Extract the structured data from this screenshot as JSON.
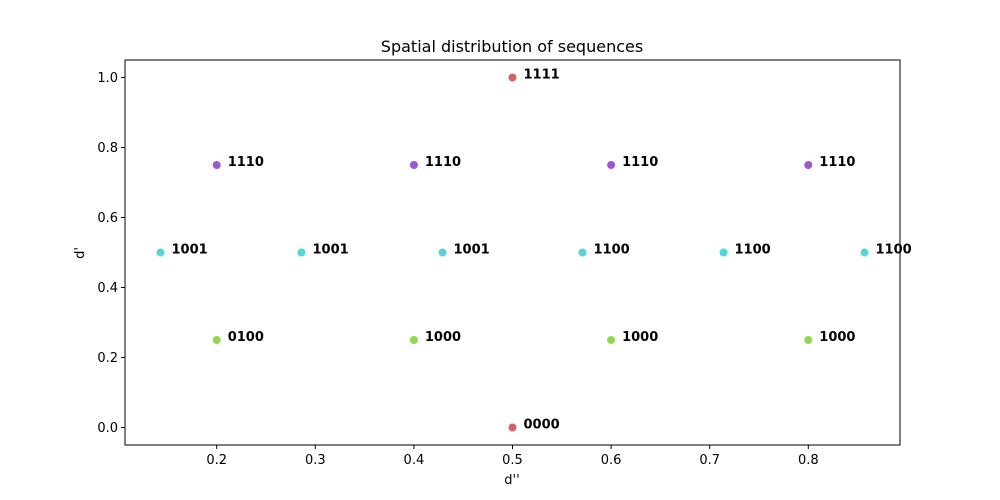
{
  "chart_data": {
    "type": "scatter",
    "title": "Spatial distribution of sequences",
    "xlabel": "d''",
    "ylabel": "d'",
    "xlim": [
      0.107,
      0.893
    ],
    "ylim": [
      -0.05,
      1.05
    ],
    "xticks": [
      0.2,
      0.3,
      0.4,
      0.5,
      0.6,
      0.7,
      0.8
    ],
    "xtick_labels": [
      "0.2",
      "0.3",
      "0.4",
      "0.5",
      "0.6",
      "0.7",
      "0.8"
    ],
    "yticks": [
      0.0,
      0.2,
      0.4,
      0.6,
      0.8,
      1.0
    ],
    "ytick_labels": [
      "0.0",
      "0.2",
      "0.4",
      "0.6",
      "0.8",
      "1.0"
    ],
    "grid": false,
    "colors": {
      "red": "#d65f5f",
      "purple": "#9c57d1",
      "cyan": "#53d6da",
      "green": "#91d84f"
    },
    "points": [
      {
        "x": 0.5,
        "y": 1.0,
        "label": "1111",
        "color": "red"
      },
      {
        "x": 0.2,
        "y": 0.75,
        "label": "1110",
        "color": "purple"
      },
      {
        "x": 0.4,
        "y": 0.75,
        "label": "1110",
        "color": "purple"
      },
      {
        "x": 0.6,
        "y": 0.75,
        "label": "1110",
        "color": "purple"
      },
      {
        "x": 0.8,
        "y": 0.75,
        "label": "1110",
        "color": "purple"
      },
      {
        "x": 0.143,
        "y": 0.5,
        "label": "1001",
        "color": "cyan"
      },
      {
        "x": 0.286,
        "y": 0.5,
        "label": "1001",
        "color": "cyan"
      },
      {
        "x": 0.429,
        "y": 0.5,
        "label": "1001",
        "color": "cyan"
      },
      {
        "x": 0.571,
        "y": 0.5,
        "label": "1100",
        "color": "cyan"
      },
      {
        "x": 0.714,
        "y": 0.5,
        "label": "1100",
        "color": "cyan"
      },
      {
        "x": 0.857,
        "y": 0.5,
        "label": "1100",
        "color": "cyan"
      },
      {
        "x": 0.2,
        "y": 0.25,
        "label": "0100",
        "color": "green"
      },
      {
        "x": 0.4,
        "y": 0.25,
        "label": "1000",
        "color": "green"
      },
      {
        "x": 0.6,
        "y": 0.25,
        "label": "1000",
        "color": "green"
      },
      {
        "x": 0.8,
        "y": 0.25,
        "label": "1000",
        "color": "green"
      },
      {
        "x": 0.5,
        "y": 0.0,
        "label": "0000",
        "color": "red"
      }
    ]
  }
}
